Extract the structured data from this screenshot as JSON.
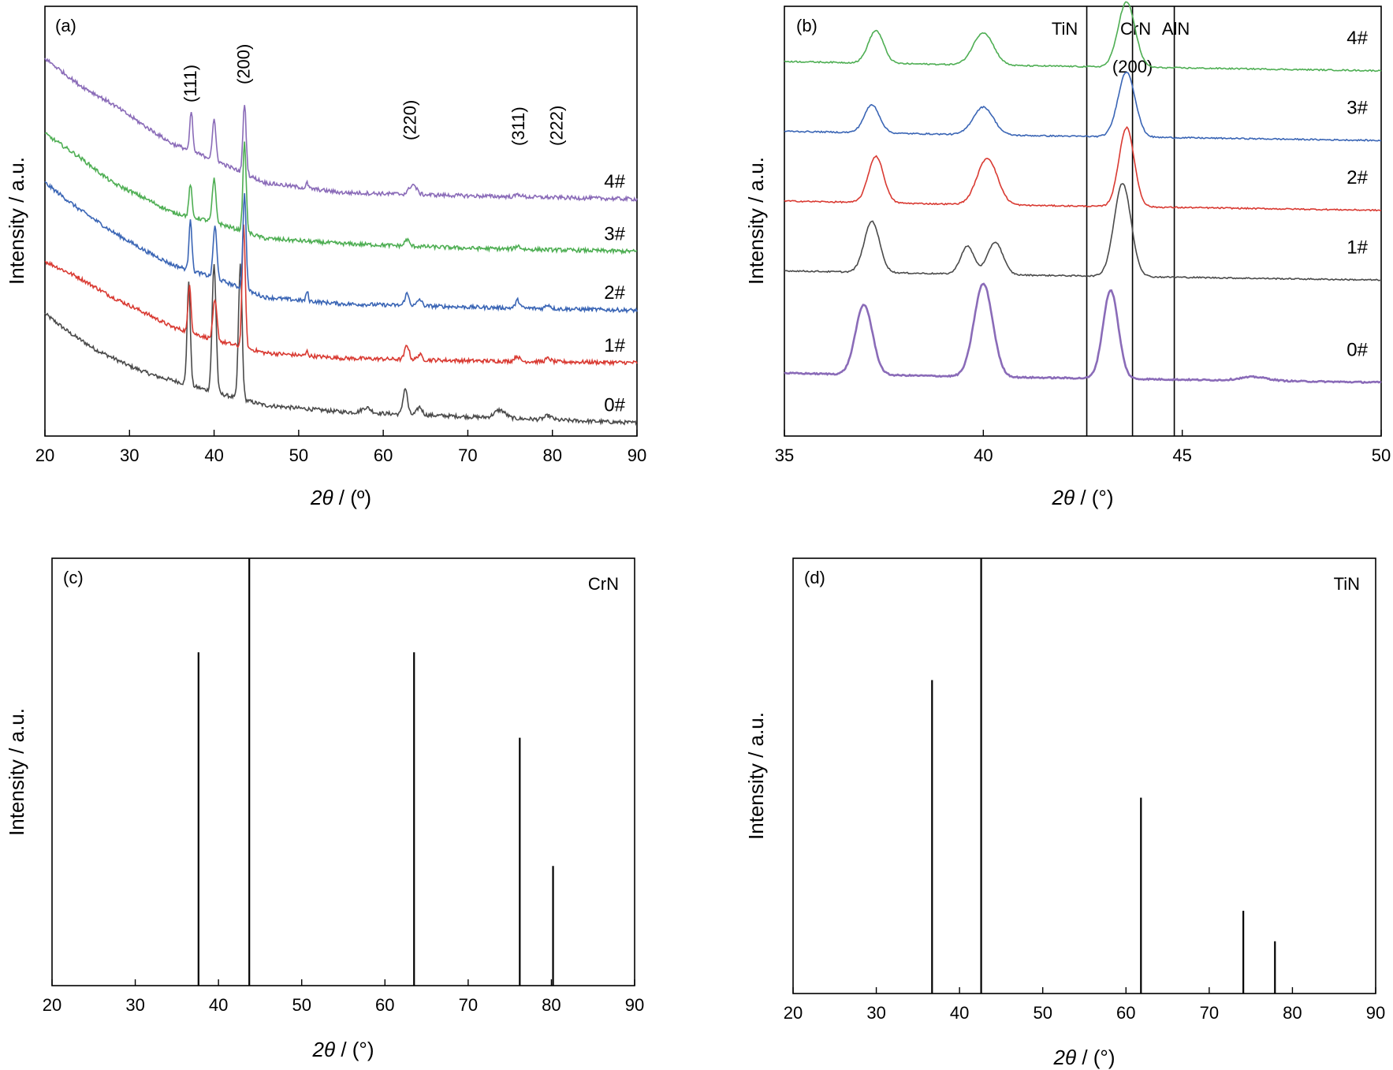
{
  "chart_data": [
    {
      "panel": "(a)",
      "type": "line",
      "xlabel_prefix": "2",
      "xlabel_theta": "θ",
      "xlabel_suffix": "/ (º)",
      "ylabel": "Intensity / a.u.",
      "xlim": [
        20,
        90
      ],
      "xticks": [
        20,
        30,
        40,
        50,
        60,
        70,
        80,
        90
      ],
      "peak_labels": [
        {
          "text": "(111)",
          "x": 37.5
        },
        {
          "text": "(200)",
          "x": 43.8
        },
        {
          "text": "(220)",
          "x": 63.5
        },
        {
          "text": "(311)",
          "x": 76.3
        },
        {
          "text": "(222)",
          "x": 80.8
        }
      ],
      "series": [
        {
          "name": "0#",
          "color": "#4a4a4a",
          "offset": 0.0,
          "base": [
            [
              20,
              1.75
            ],
            [
              23,
              1.45
            ],
            [
              26,
              1.2
            ],
            [
              30,
              0.95
            ],
            [
              33,
              0.8
            ],
            [
              36,
              0.7
            ],
            [
              40,
              0.55
            ],
            [
              46,
              0.35
            ],
            [
              55,
              0.25
            ],
            [
              65,
              0.2
            ],
            [
              75,
              0.15
            ],
            [
              90,
              0.08
            ]
          ],
          "peaks": [
            [
              37.0,
              1.55,
              0.45
            ],
            [
              40.0,
              1.95,
              0.55
            ],
            [
              43.1,
              2.05,
              0.5
            ],
            [
              58.0,
              0.08,
              1.2
            ],
            [
              62.6,
              0.4,
              0.6
            ],
            [
              64.3,
              0.12,
              0.7
            ],
            [
              73.8,
              0.12,
              1.5
            ],
            [
              79.5,
              0.06,
              1.0
            ]
          ]
        },
        {
          "name": "1#",
          "color": "#d93a32",
          "offset": 0.95,
          "base": [
            [
              20,
              1.6
            ],
            [
              24,
              1.35
            ],
            [
              28,
              1.05
            ],
            [
              32,
              0.8
            ],
            [
              35,
              0.6
            ],
            [
              40,
              0.4
            ],
            [
              46,
              0.2
            ],
            [
              55,
              0.12
            ],
            [
              70,
              0.08
            ],
            [
              90,
              0.05
            ]
          ],
          "peaks": [
            [
              37.1,
              0.75,
              0.4
            ],
            [
              40.1,
              0.6,
              0.55
            ],
            [
              43.5,
              1.85,
              0.45
            ],
            [
              51.0,
              0.07,
              0.3
            ],
            [
              62.8,
              0.22,
              0.6
            ],
            [
              64.3,
              0.08,
              0.6
            ],
            [
              75.8,
              0.08,
              0.7
            ],
            [
              79.5,
              0.05,
              0.7
            ]
          ]
        },
        {
          "name": "2#",
          "color": "#3a65b5",
          "offset": 1.8,
          "base": [
            [
              20,
              1.95
            ],
            [
              24,
              1.55
            ],
            [
              28,
              1.2
            ],
            [
              32,
              0.9
            ],
            [
              35,
              0.7
            ],
            [
              40,
              0.5
            ],
            [
              46,
              0.2
            ],
            [
              55,
              0.1
            ],
            [
              70,
              0.05
            ],
            [
              90,
              0.0
            ]
          ],
          "peaks": [
            [
              37.2,
              0.8,
              0.4
            ],
            [
              40.1,
              0.8,
              0.5
            ],
            [
              43.6,
              1.45,
              0.45
            ],
            [
              51.0,
              0.15,
              0.3
            ],
            [
              62.8,
              0.18,
              0.6
            ],
            [
              64.3,
              0.1,
              0.6
            ],
            [
              75.9,
              0.12,
              0.6
            ],
            [
              79.5,
              0.06,
              0.7
            ]
          ]
        },
        {
          "name": "3#",
          "color": "#4eae53",
          "offset": 2.7,
          "base": [
            [
              20,
              1.8
            ],
            [
              24,
              1.45
            ],
            [
              28,
              1.05
            ],
            [
              32,
              0.8
            ],
            [
              35,
              0.6
            ],
            [
              40,
              0.45
            ],
            [
              46,
              0.2
            ],
            [
              55,
              0.12
            ],
            [
              70,
              0.05
            ],
            [
              90,
              0.0
            ]
          ],
          "peaks": [
            [
              37.2,
              0.5,
              0.4
            ],
            [
              40.0,
              0.65,
              0.5
            ],
            [
              43.6,
              1.35,
              0.45
            ],
            [
              62.8,
              0.1,
              0.6
            ],
            [
              75.9,
              0.05,
              0.7
            ]
          ]
        },
        {
          "name": "4#",
          "color": "#8a6bb8",
          "offset": 3.5,
          "base": [
            [
              20,
              2.15
            ],
            [
              24,
              1.75
            ],
            [
              28,
              1.45
            ],
            [
              32,
              1.1
            ],
            [
              35,
              0.85
            ],
            [
              40,
              0.6
            ],
            [
              46,
              0.25
            ],
            [
              55,
              0.1
            ],
            [
              70,
              0.05
            ],
            [
              90,
              0.0
            ]
          ],
          "peaks": [
            [
              37.3,
              0.6,
              0.4
            ],
            [
              40.0,
              0.6,
              0.5
            ],
            [
              43.6,
              1.05,
              0.45
            ],
            [
              51.0,
              0.08,
              0.3
            ],
            [
              63.5,
              0.15,
              1.0
            ],
            [
              76.0,
              0.04,
              0.7
            ]
          ]
        }
      ]
    },
    {
      "panel": "(b)",
      "type": "line",
      "xlabel_prefix": "2",
      "xlabel_theta": "θ",
      "xlabel_suffix": "/ (°)",
      "ylabel": "Intensity / a.u.",
      "xlim": [
        35,
        50
      ],
      "xticks": [
        35,
        40,
        45,
        50
      ],
      "reference_lines": [
        {
          "label": "TiN",
          "x": 42.6
        },
        {
          "label": "CrN",
          "x": 43.75
        },
        {
          "label": "AlN",
          "x": 44.8
        }
      ],
      "reference_note": "(200)",
      "series": [
        {
          "name": "0#",
          "color": "#8a6bb8",
          "offset": 0.0,
          "base": [
            [
              35,
              0.1
            ],
            [
              40,
              0.06
            ],
            [
              45,
              0.03
            ],
            [
              50,
              0.0
            ]
          ],
          "peaks": [
            [
              37.0,
              0.75,
              0.5
            ],
            [
              40.0,
              1.0,
              0.55
            ],
            [
              43.2,
              0.95,
              0.45
            ],
            [
              46.8,
              0.04,
              0.8
            ]
          ]
        },
        {
          "name": "1#",
          "color": "#4a4a4a",
          "offset": 1.1,
          "base": [
            [
              35,
              0.1
            ],
            [
              40,
              0.06
            ],
            [
              45,
              0.03
            ],
            [
              50,
              0.0
            ]
          ],
          "peaks": [
            [
              37.2,
              0.55,
              0.45
            ],
            [
              39.6,
              0.3,
              0.4
            ],
            [
              40.3,
              0.35,
              0.45
            ],
            [
              43.5,
              1.0,
              0.5
            ]
          ]
        },
        {
          "name": "2#",
          "color": "#d93a32",
          "offset": 1.85,
          "base": [
            [
              35,
              0.1
            ],
            [
              40,
              0.06
            ],
            [
              45,
              0.03
            ],
            [
              50,
              0.0
            ]
          ],
          "peaks": [
            [
              37.3,
              0.5,
              0.45
            ],
            [
              40.1,
              0.5,
              0.6
            ],
            [
              43.6,
              0.85,
              0.45
            ]
          ]
        },
        {
          "name": "3#",
          "color": "#3a65b5",
          "offset": 2.6,
          "base": [
            [
              35,
              0.1
            ],
            [
              40,
              0.06
            ],
            [
              45,
              0.03
            ],
            [
              50,
              0.0
            ]
          ],
          "peaks": [
            [
              37.2,
              0.3,
              0.45
            ],
            [
              40.0,
              0.3,
              0.6
            ],
            [
              43.6,
              0.7,
              0.5
            ]
          ]
        },
        {
          "name": "4#",
          "color": "#4eae53",
          "offset": 3.35,
          "base": [
            [
              35,
              0.1
            ],
            [
              40,
              0.06
            ],
            [
              45,
              0.03
            ],
            [
              50,
              0.0
            ]
          ],
          "peaks": [
            [
              37.3,
              0.35,
              0.45
            ],
            [
              40.0,
              0.35,
              0.6
            ],
            [
              43.6,
              0.7,
              0.5
            ]
          ]
        }
      ]
    },
    {
      "panel": "(c)",
      "type": "bar",
      "label": "CrN",
      "xlabel_prefix": "2",
      "xlabel_theta": "θ",
      "xlabel_suffix": "/ (°)",
      "ylabel": "Intensity / a.u.",
      "xlim": [
        20,
        90
      ],
      "xticks": [
        20,
        30,
        40,
        50,
        60,
        70,
        80,
        90
      ],
      "ylim": [
        0,
        100
      ],
      "sticks": [
        {
          "x": 37.6,
          "y": 78
        },
        {
          "x": 43.7,
          "y": 100
        },
        {
          "x": 63.5,
          "y": 78
        },
        {
          "x": 76.2,
          "y": 58
        },
        {
          "x": 80.2,
          "y": 28
        }
      ]
    },
    {
      "panel": "(d)",
      "type": "bar",
      "label": "TiN",
      "xlabel_prefix": "2",
      "xlabel_theta": "θ",
      "xlabel_suffix": "/ (°)",
      "ylabel": "Intensity / a.u.",
      "xlim": [
        20,
        90
      ],
      "xticks": [
        20,
        30,
        40,
        50,
        60,
        70,
        80,
        90
      ],
      "ylim": [
        0,
        100
      ],
      "sticks": [
        {
          "x": 36.7,
          "y": 72
        },
        {
          "x": 42.6,
          "y": 100
        },
        {
          "x": 61.8,
          "y": 45
        },
        {
          "x": 74.1,
          "y": 19
        },
        {
          "x": 77.9,
          "y": 12
        }
      ]
    }
  ]
}
